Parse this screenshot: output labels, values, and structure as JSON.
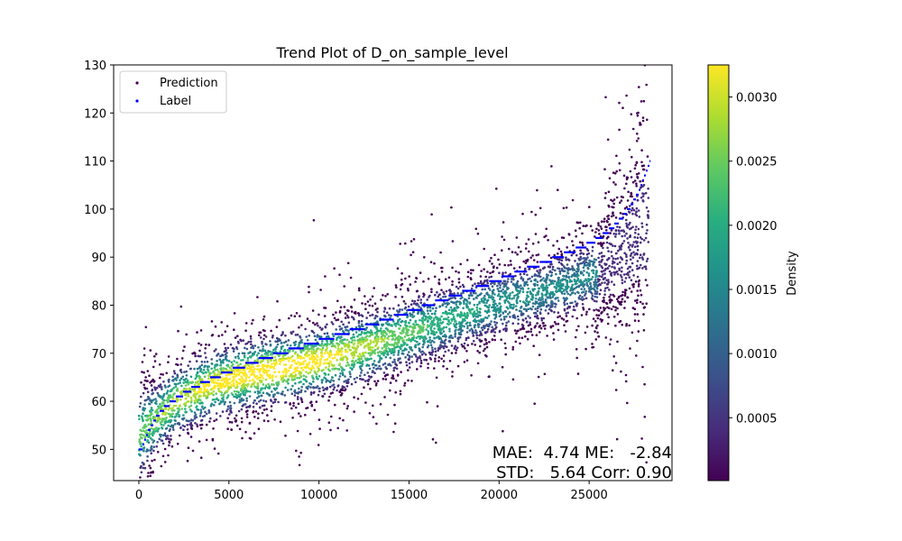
{
  "figure": {
    "title": "Trend Plot of D_on_sample_level"
  },
  "chart_data": {
    "type": "scatter",
    "title": "Trend Plot of D_on_sample_level",
    "xlabel": "",
    "ylabel": "",
    "xlim": [
      -1400,
      29600
    ],
    "ylim": [
      43.5,
      130
    ],
    "xticks": [
      0,
      5000,
      10000,
      15000,
      20000,
      25000
    ],
    "yticks": [
      50,
      60,
      70,
      80,
      90,
      100,
      110,
      120,
      130
    ],
    "grid": false,
    "legend": {
      "placement": "top-left",
      "entries": [
        "Prediction",
        "Label"
      ]
    },
    "series": [
      {
        "name": "Prediction",
        "kind": "density-colored scatter",
        "color": "#440154",
        "n_points_approx": 28500,
        "x_range": [
          0,
          28300
        ],
        "trend_points": [
          [
            0,
            53
          ],
          [
            2000,
            60
          ],
          [
            4000,
            63.5
          ],
          [
            6000,
            65.5
          ],
          [
            8000,
            67
          ],
          [
            10000,
            68.5
          ],
          [
            12000,
            70.5
          ],
          [
            14000,
            73
          ],
          [
            16000,
            75.5
          ],
          [
            18000,
            78
          ],
          [
            20000,
            80.5
          ],
          [
            22000,
            82.5
          ],
          [
            24000,
            84.5
          ],
          [
            26000,
            87.5
          ],
          [
            28300,
            97
          ]
        ]
      },
      {
        "name": "Label",
        "kind": "step scatter",
        "color": "#0000ff",
        "step_points": [
          [
            0,
            50
          ],
          [
            200,
            51
          ],
          [
            300,
            52
          ],
          [
            400,
            53
          ],
          [
            500,
            54
          ],
          [
            650,
            55
          ],
          [
            800,
            56
          ],
          [
            950,
            57
          ],
          [
            1150,
            58
          ],
          [
            1400,
            59
          ],
          [
            1700,
            60
          ],
          [
            2050,
            61
          ],
          [
            2450,
            62
          ],
          [
            2900,
            63
          ],
          [
            3400,
            64
          ],
          [
            3950,
            65
          ],
          [
            4550,
            66
          ],
          [
            5200,
            67
          ],
          [
            5900,
            68
          ],
          [
            6650,
            69
          ],
          [
            7450,
            70
          ],
          [
            8300,
            71
          ],
          [
            9150,
            72
          ],
          [
            10000,
            73
          ],
          [
            10850,
            74
          ],
          [
            11700,
            75
          ],
          [
            12550,
            76
          ],
          [
            13350,
            77
          ],
          [
            14150,
            78
          ],
          [
            14950,
            79
          ],
          [
            15700,
            80
          ],
          [
            16450,
            81
          ],
          [
            17200,
            82
          ],
          [
            17950,
            83
          ],
          [
            18700,
            84
          ],
          [
            19450,
            85
          ],
          [
            20150,
            86
          ],
          [
            20850,
            87
          ],
          [
            21550,
            88
          ],
          [
            22250,
            89
          ],
          [
            22950,
            90
          ],
          [
            23600,
            91
          ],
          [
            24250,
            92
          ],
          [
            24850,
            93
          ],
          [
            25350,
            94
          ],
          [
            25750,
            95
          ],
          [
            26100,
            96
          ],
          [
            26400,
            97
          ],
          [
            26650,
            98
          ],
          [
            26900,
            99
          ],
          [
            27100,
            100
          ],
          [
            27300,
            101
          ],
          [
            27450,
            102
          ],
          [
            27600,
            103
          ],
          [
            27750,
            104
          ],
          [
            27850,
            105
          ],
          [
            27950,
            106
          ],
          [
            28050,
            107
          ],
          [
            28150,
            108
          ],
          [
            28250,
            109
          ],
          [
            28350,
            110
          ]
        ]
      }
    ],
    "colorbar": {
      "label": "Density",
      "colormap": "viridis",
      "range": [
        1e-05,
        0.00325
      ],
      "ticks": [
        0.0005,
        0.001,
        0.0015,
        0.002,
        0.0025,
        0.003
      ],
      "tick_labels": [
        "0.0005",
        "0.0010",
        "0.0015",
        "0.0020",
        "0.0025",
        "0.0030"
      ]
    },
    "annotations": {
      "line1": "MAE:  4.74 ME:   -2.84",
      "line2": "STD:   5.64 Corr: 0.90"
    }
  }
}
